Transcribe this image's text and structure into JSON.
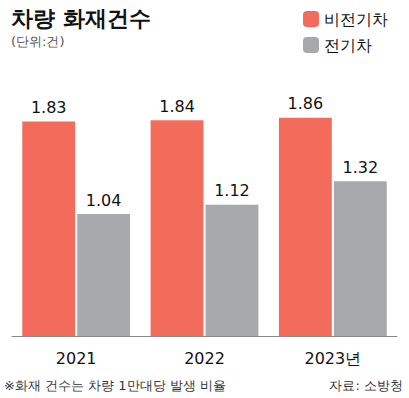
{
  "chart_data": {
    "type": "bar",
    "title": "차량 화재건수",
    "subtitle": "(단위:건)",
    "categories": [
      "2021",
      "2022",
      "2023년"
    ],
    "series": [
      {
        "name": "비전기차",
        "color": "#f26b5b",
        "values": [
          1.83,
          1.84,
          1.86
        ]
      },
      {
        "name": "전기차",
        "color": "#a7a9ac",
        "values": [
          1.04,
          1.12,
          1.32
        ]
      }
    ],
    "ylim": [
      0,
      2.2
    ],
    "yticks": [
      0,
      2.2
    ],
    "grid": false,
    "legend": "upper right",
    "data_labels": true,
    "tick_labels": "x",
    "annotations": [
      "※화재 건수는 차량 1만대당 발생 비율",
      "자료: 소방청"
    ]
  }
}
